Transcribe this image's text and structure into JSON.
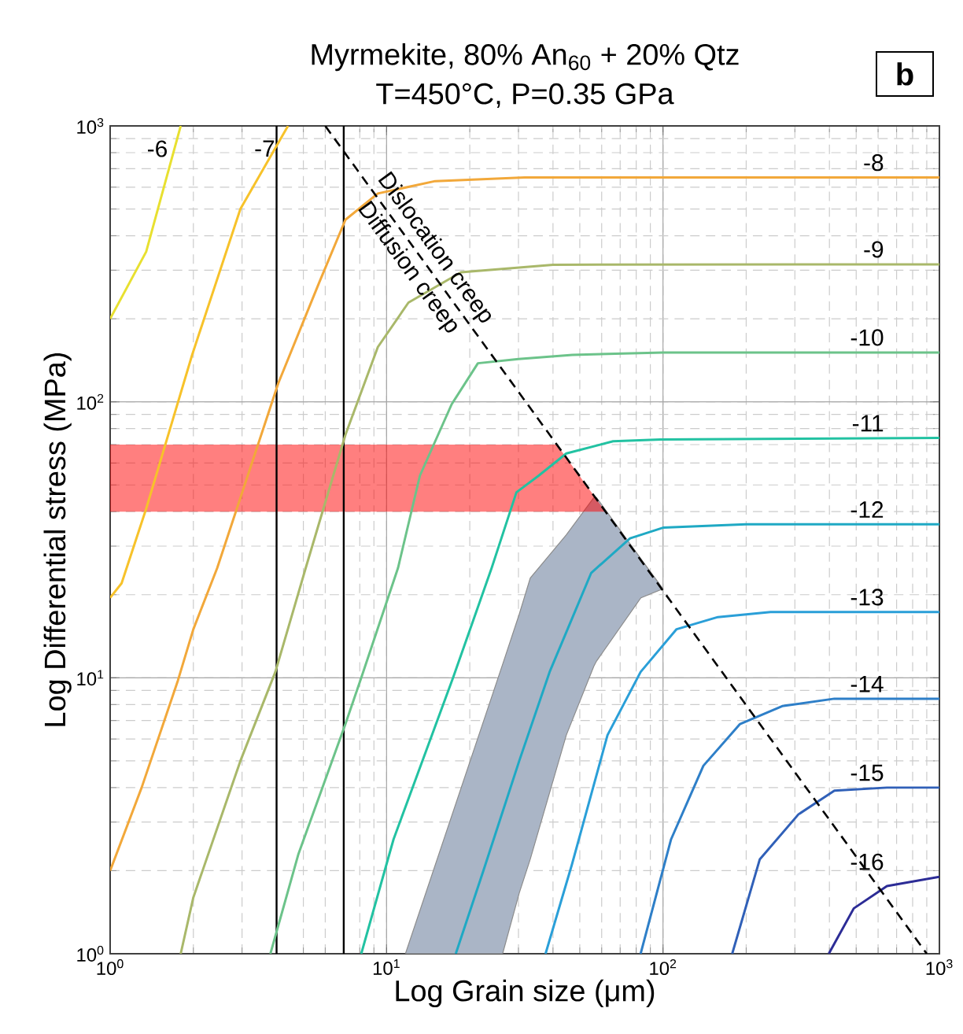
{
  "chart_data": {
    "type": "line",
    "title": "Myrmekite, 80% An$_{60}$ + 20% Qtz",
    "subtitle": "T=450°C, P=0.35 GPa",
    "xlabel": "Log Grain size (μm)",
    "ylabel": "Log Differential stress (MPa)",
    "log": "xy",
    "grid": true,
    "marker": "none",
    "xlim": [
      1,
      1000
    ],
    "ylim": [
      1,
      1000
    ],
    "xticks": [
      {
        "value": 1,
        "label": "10$^{0}$"
      },
      {
        "value": 10,
        "label": "10$^{1}$"
      },
      {
        "value": 100,
        "label": "10$^{2}$"
      },
      {
        "value": 1000,
        "label": "10$^{3}$"
      }
    ],
    "yticks": [
      {
        "value": 1,
        "label": "10$^{0}$"
      },
      {
        "value": 10,
        "label": "10$^{1}$"
      },
      {
        "value": 100,
        "label": "10$^{2}$"
      },
      {
        "value": 1000,
        "label": "10$^{3}$"
      }
    ],
    "annotations": [
      "b",
      "Dislocation creep",
      "Diffusion creep"
    ],
    "bands": [
      {
        "axis": "y",
        "from": 40,
        "to": 70,
        "color": "#ff7b7b"
      }
    ],
    "ref_lines": [
      {
        "axis": "x",
        "value": 4,
        "color": "#000000"
      },
      {
        "axis": "x",
        "value": 7,
        "color": "#000000"
      }
    ],
    "series": [
      {
        "name": "-6",
        "color": "#e8e030",
        "x": [
          1,
          1.35,
          1.8
        ],
        "values": [
          200,
          350,
          1000
        ]
      },
      {
        "name": "-7",
        "color": "#f7c22a",
        "x": [
          1,
          1.1,
          1.35,
          1.98,
          2.96,
          4.4
        ],
        "values": [
          19.5,
          22,
          41,
          148,
          500,
          1000
        ]
      },
      {
        "name": "-8",
        "color": "#f2a83a",
        "x": [
          1,
          1.3,
          1.76,
          2.0,
          2.44,
          4.06,
          5.7,
          7.1,
          9.3,
          15,
          31.6,
          1000
        ],
        "values": [
          2,
          4,
          9.8,
          15,
          25,
          117,
          270,
          457,
          569,
          631,
          650,
          650
        ]
      },
      {
        "name": "-9",
        "color": "#a9b86a",
        "x": [
          1.8,
          2,
          2.96,
          3.96,
          5.1,
          7.1,
          9.3,
          12,
          18.6,
          40,
          1000
        ],
        "values": [
          1,
          1.6,
          5,
          10.5,
          25,
          76,
          158,
          229,
          295,
          314,
          315
        ]
      },
      {
        "name": "-10",
        "color": "#6cc38a",
        "x": [
          3.8,
          4.8,
          7.1,
          8.1,
          11,
          13.2,
          17.2,
          21.4,
          30,
          47,
          100,
          1000
        ],
        "values": [
          1,
          2.3,
          6.8,
          10,
          25,
          54,
          98,
          138,
          143,
          148,
          151,
          151
        ]
      },
      {
        "name": "-11",
        "color": "#22c2a2",
        "x": [
          8.1,
          10.6,
          17.4,
          24,
          29.5,
          35.5,
          44.7,
          66,
          98,
          1000
        ],
        "values": [
          1,
          2.6,
          10,
          25,
          47,
          54,
          65,
          72,
          73,
          74
        ]
      },
      {
        "color": "#aab5c6",
        "x": [
          11.7,
          26.3,
          30.2,
          33.1,
          44.7,
          56.2,
          57.5,
          83.2,
          100
        ],
        "values": [
          null,
          null,
          null,
          null,
          null,
          null,
          null,
          null,
          null
        ],
        "upper": [
          1,
          11.2,
          17,
          23,
          33,
          45,
          45,
          27,
          21
        ],
        "lower": [
          1,
          1,
          1.66,
          2.2,
          6.2,
          11,
          11.5,
          19.5,
          21
        ]
      },
      {
        "name": "-12",
        "color": "#1fa9c4",
        "x": [
          17.8,
          22.4,
          30.2,
          38.9,
          55,
          76,
          100,
          200,
          1000
        ],
        "values": [
          1,
          2,
          5,
          10.5,
          24,
          32,
          35,
          36,
          36
        ]
      },
      {
        "name": "-13",
        "color": "#2a9fd8",
        "x": [
          37.6,
          46.8,
          63,
          83,
          112,
          158,
          245,
          1000
        ],
        "values": [
          1,
          2.1,
          6.2,
          10.5,
          15,
          16.6,
          17.3,
          17.3
        ]
      },
      {
        "name": "-14",
        "color": "#2e7fc8",
        "x": [
          83,
          107,
          140,
          190,
          270,
          417,
          1000
        ],
        "values": [
          1,
          2.6,
          4.8,
          6.8,
          7.9,
          8.4,
          8.4
        ]
      },
      {
        "name": "-15",
        "color": "#3060b8",
        "x": [
          178,
          224,
          309,
          417,
          646,
          1000
        ],
        "values": [
          1,
          2.2,
          3.2,
          3.9,
          4.0,
          4.0
        ]
      },
      {
        "name": "-16",
        "color": "#2c2c96",
        "x": [
          398,
          490,
          646,
          1000
        ],
        "values": [
          1,
          1.46,
          1.76,
          1.9
        ]
      },
      {
        "color": "#000000",
        "line_style": "dashed",
        "x": [
          6,
          900
        ],
        "values": [
          1000,
          1
        ]
      }
    ]
  }
}
